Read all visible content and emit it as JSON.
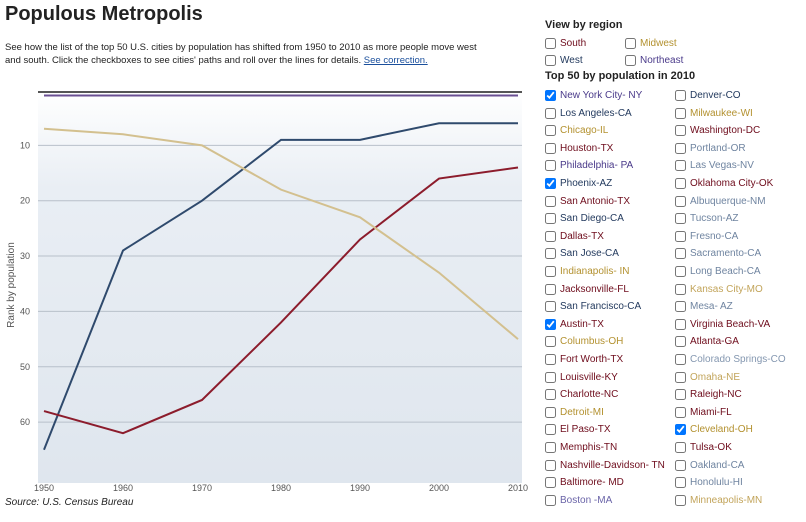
{
  "header": {
    "title": "Populous Metropolis",
    "description": "See how the list of the top 50 U.S. cities by population has shifted from 1950 to 2010 as more people move west and south. Click the checkboxes to see cities' paths and roll over the lines for details.",
    "link": "See correction."
  },
  "chart_data": {
    "type": "line",
    "y_label": "Rank by population",
    "source": "Source: U.S. Census Bureau",
    "x": [
      1950,
      1960,
      1970,
      1980,
      1990,
      2000,
      2010
    ],
    "xlim": [
      1950,
      2010
    ],
    "xticks": [
      1950,
      1960,
      1970,
      1980,
      1990,
      2000,
      2010
    ],
    "ylim": [
      0,
      71
    ],
    "yticks": [
      10,
      20,
      30,
      40,
      50,
      60
    ],
    "y_inverted": true,
    "grid": true,
    "series": [
      {
        "name": "New York City- NY",
        "color": "#6a4f93",
        "values": [
          1,
          1,
          1,
          1,
          1,
          1,
          1
        ]
      },
      {
        "name": "Phoenix-AZ",
        "color": "#2f4a6d",
        "values": [
          65,
          29,
          20,
          9,
          9,
          6,
          6
        ]
      },
      {
        "name": "Austin-TX",
        "color": "#8c1c2c",
        "values": [
          58,
          62,
          56,
          42,
          27,
          16,
          14
        ]
      },
      {
        "name": "Cleveland-OH",
        "color": "#d3c08f",
        "values": [
          7,
          8,
          10,
          18,
          23,
          33,
          45
        ]
      }
    ]
  },
  "region_filter": {
    "title": "View by region",
    "options": [
      {
        "label": "South",
        "color": "#6e0c1c",
        "checked": false
      },
      {
        "label": "Midwest",
        "color": "#b3912f",
        "checked": false
      },
      {
        "label": "West",
        "color": "#233a5e",
        "checked": false
      },
      {
        "label": "Northeast",
        "color": "#4a3a8a",
        "checked": false
      }
    ]
  },
  "city_list": {
    "title": "Top 50 by population in 2010",
    "columns": [
      [
        {
          "label": "New York City- NY",
          "color": "#4a3a8a",
          "checked": true
        },
        {
          "label": "Los Angeles-CA",
          "color": "#233a5e",
          "checked": false
        },
        {
          "label": "Chicago-IL",
          "color": "#b3912f",
          "checked": false
        },
        {
          "label": "Houston-TX",
          "color": "#6e0c1c",
          "checked": false
        },
        {
          "label": "Philadelphia- PA",
          "color": "#4a3a8a",
          "checked": false
        },
        {
          "label": "Phoenix-AZ",
          "color": "#233a5e",
          "checked": true
        },
        {
          "label": "San Antonio-TX",
          "color": "#6e0c1c",
          "checked": false
        },
        {
          "label": "San Diego-CA",
          "color": "#233a5e",
          "checked": false
        },
        {
          "label": "Dallas-TX",
          "color": "#6e0c1c",
          "checked": false
        },
        {
          "label": "San Jose-CA",
          "color": "#233a5e",
          "checked": false
        },
        {
          "label": "Indianapolis- IN",
          "color": "#b3912f",
          "checked": false
        },
        {
          "label": "Jacksonville-FL",
          "color": "#6e0c1c",
          "checked": false
        },
        {
          "label": "San Francisco-CA",
          "color": "#233a5e",
          "checked": false
        },
        {
          "label": "Austin-TX",
          "color": "#6e0c1c",
          "checked": true
        },
        {
          "label": "Columbus-OH",
          "color": "#b3912f",
          "checked": false
        },
        {
          "label": "Fort Worth-TX",
          "color": "#6e0c1c",
          "checked": false
        },
        {
          "label": "Louisville-KY",
          "color": "#6e0c1c",
          "checked": false
        },
        {
          "label": "Charlotte-NC",
          "color": "#6e0c1c",
          "checked": false
        },
        {
          "label": "Detroit-MI",
          "color": "#b3912f",
          "checked": false
        },
        {
          "label": "El Paso-TX",
          "color": "#6e0c1c",
          "checked": false
        },
        {
          "label": "Memphis-TN",
          "color": "#6e0c1c",
          "checked": false
        },
        {
          "label": "Nashville-Davidson- TN",
          "color": "#6e0c1c",
          "checked": false
        },
        {
          "label": "Baltimore- MD",
          "color": "#6e0c1c",
          "checked": false
        },
        {
          "label": "Boston -MA",
          "color": "#6a64a8",
          "checked": false
        }
      ],
      [
        {
          "label": "Denver-CO",
          "color": "#233a5e",
          "checked": false
        },
        {
          "label": "Milwaukee-WI",
          "color": "#b3912f",
          "checked": false
        },
        {
          "label": "Washington-DC",
          "color": "#6e0c1c",
          "checked": false
        },
        {
          "label": "Portland-OR",
          "color": "#6f84a0",
          "checked": false
        },
        {
          "label": "Las Vegas-NV",
          "color": "#6f84a0",
          "checked": false
        },
        {
          "label": "Oklahoma City-OK",
          "color": "#6e0c1c",
          "checked": false
        },
        {
          "label": "Albuquerque-NM",
          "color": "#6f84a0",
          "checked": false
        },
        {
          "label": "Tucson-AZ",
          "color": "#6f84a0",
          "checked": false
        },
        {
          "label": "Fresno-CA",
          "color": "#6f84a0",
          "checked": false
        },
        {
          "label": "Sacramento-CA",
          "color": "#6f84a0",
          "checked": false
        },
        {
          "label": "Long Beach-CA",
          "color": "#6f84a0",
          "checked": false
        },
        {
          "label": "Kansas City-MO",
          "color": "#c2a45a",
          "checked": false
        },
        {
          "label": "Mesa- AZ",
          "color": "#6f84a0",
          "checked": false
        },
        {
          "label": "Virginia Beach-VA",
          "color": "#6e0c1c",
          "checked": false
        },
        {
          "label": "Atlanta-GA",
          "color": "#6e0c1c",
          "checked": false
        },
        {
          "label": "Colorado Springs-CO",
          "color": "#8497b0",
          "checked": false
        },
        {
          "label": "Omaha-NE",
          "color": "#c2a45a",
          "checked": false
        },
        {
          "label": "Raleigh-NC",
          "color": "#6e0c1c",
          "checked": false
        },
        {
          "label": "Miami-FL",
          "color": "#6e0c1c",
          "checked": false
        },
        {
          "label": "Cleveland-OH",
          "color": "#b3912f",
          "checked": true
        },
        {
          "label": "Tulsa-OK",
          "color": "#6e0c1c",
          "checked": false
        },
        {
          "label": "Oakland-CA",
          "color": "#6f84a0",
          "checked": false
        },
        {
          "label": "Honolulu-HI",
          "color": "#6f84a0",
          "checked": false
        },
        {
          "label": "Minneapolis-MN",
          "color": "#c2a45a",
          "checked": false
        }
      ]
    ]
  }
}
